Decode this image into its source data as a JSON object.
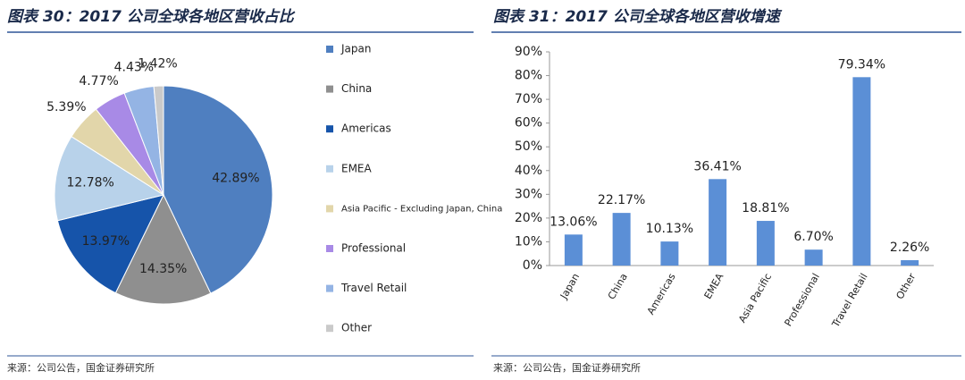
{
  "chart_data": [
    {
      "type": "pie",
      "title": "图表 30：2017 公司全球各地区营收占比",
      "source": "来源：公司公告，国金证券研究所",
      "categories": [
        "Japan",
        "China",
        "Americas",
        "EMEA",
        "Asia Pacific - Excluding Japan, China",
        "Professional",
        "Travel Retail",
        "Other"
      ],
      "values": [
        42.89,
        14.35,
        13.97,
        12.78,
        5.39,
        4.77,
        4.43,
        1.42
      ],
      "value_labels": [
        "42.89%",
        "14.35%",
        "13.97%",
        "12.78%",
        "5.39%",
        "4.77%",
        "4.43%",
        "1.42%"
      ],
      "colors": [
        "#4f7fc0",
        "#8f8f8f",
        "#1654aa",
        "#b8d2ea",
        "#e2d6aa",
        "#a88ae6",
        "#94b4e4",
        "#cacaca"
      ],
      "legend": "right"
    },
    {
      "type": "bar",
      "title": "图表 31：2017 公司全球各地区营收增速",
      "source": "来源：公司公告，国金证券研究所",
      "categories": [
        "Japan",
        "China",
        "Americas",
        "EMEA",
        "Asia Pacific",
        "Professional",
        "Travel Retail",
        "Other"
      ],
      "values": [
        13.06,
        22.17,
        10.13,
        36.41,
        18.81,
        6.7,
        79.34,
        2.26
      ],
      "value_labels": [
        "13.06%",
        "22.17%",
        "10.13%",
        "36.41%",
        "18.81%",
        "6.70%",
        "79.34%",
        "2.26%"
      ],
      "color": "#5b8fd6",
      "ylim": [
        0,
        90
      ],
      "yticks": [
        {
          "value": 0,
          "label": "0%"
        },
        {
          "value": 10,
          "label": "10%"
        },
        {
          "value": 20,
          "label": "20%"
        },
        {
          "value": 30,
          "label": "30%"
        },
        {
          "value": 40,
          "label": "40%"
        },
        {
          "value": 50,
          "label": "50%"
        },
        {
          "value": 60,
          "label": "60%"
        },
        {
          "value": 70,
          "label": "70%"
        },
        {
          "value": 80,
          "label": "80%"
        },
        {
          "value": 90,
          "label": "90%"
        }
      ],
      "grid": false
    }
  ]
}
